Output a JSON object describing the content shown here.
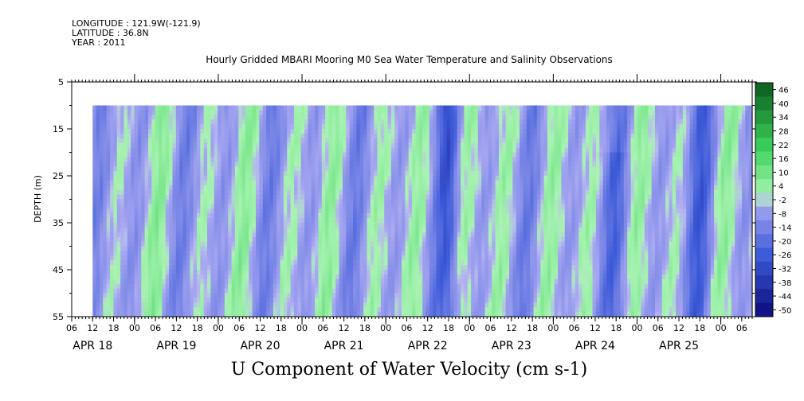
{
  "header": {
    "longitude": "LONGITUDE : 121.9W(-121.9)",
    "latitude": "LATITUDE : 36.8N",
    "year": "YEAR : 2011"
  },
  "chart_data": {
    "type": "heatmap",
    "title": "Hourly Gridded MBARI Mooring M0 Sea Water Temperature and Salinity Observations",
    "variable_title": "U Component of Water Velocity (cm s-1)",
    "ylabel": "DEPTH (m)",
    "xlabel": "",
    "y_axis": {
      "ticks": [
        5,
        15,
        25,
        35,
        45,
        55
      ],
      "labels": [
        "5",
        "15",
        "25",
        "35",
        "45",
        "55"
      ],
      "range": [
        5,
        55
      ],
      "inverted": true
    },
    "x_axis": {
      "range": [
        "2011-04-17T06:00",
        "2011-04-25T09:00"
      ],
      "hour_labels": [
        "06",
        "12",
        "18",
        "00",
        "06",
        "12",
        "18",
        "00",
        "06",
        "12",
        "18",
        "00",
        "06",
        "12",
        "18",
        "00",
        "06",
        "12",
        "18",
        "00",
        "06",
        "12",
        "18",
        "00",
        "06",
        "12",
        "18",
        "00",
        "06",
        "12",
        "18",
        "00",
        "06"
      ],
      "date_labels": [
        "APR 18",
        "APR 19",
        "APR 20",
        "APR 21",
        "APR 22",
        "APR 23",
        "APR 24",
        "APR 25"
      ]
    },
    "data_extent": {
      "time_start": "2011-04-17T12:00",
      "time_end": "2011-04-25T09:00",
      "depth_top": 10,
      "depth_bottom": 55
    },
    "colorbar": {
      "labels": [
        "46",
        "40",
        "34",
        "28",
        "22",
        "16",
        "10",
        "4",
        "-2",
        "-8",
        "-14",
        "-20",
        "-26",
        "-32",
        "-38",
        "-44",
        "-50"
      ],
      "min": -50,
      "max": 50,
      "colors": {
        "very_negative": "#0a0a7a",
        "negative": "#3c5ad8",
        "slightly_negative": "#a6a6f0",
        "slightly_positive": "#9cf0a8",
        "positive": "#3cd25a",
        "very_positive": "#0a5a1e"
      }
    },
    "field_summary": "Alternating bands of slightly negative (lavender-blue) and slightly positive (pale green) U velocity with a tidal-like periodicity; strongest negative values near APR 21 18h and APR 24 18h.",
    "legend": "colorbar-right",
    "grid": false
  }
}
